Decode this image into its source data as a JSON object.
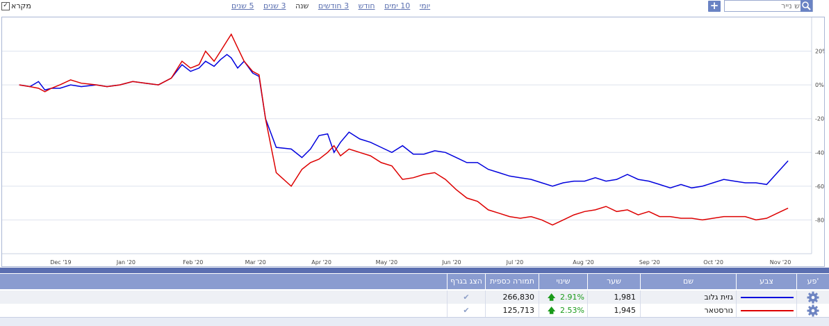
{
  "toolbar": {
    "legend_label": "מקרא",
    "legend_checked": true,
    "ranges": [
      "יומי",
      "10 ימים",
      "חודש",
      "3 חודשים",
      "שנה",
      "3 שנים",
      "5 שנים"
    ],
    "active_range": "שנה",
    "search_placeholder": "חפש נייר"
  },
  "chart_data": {
    "type": "line",
    "x_ticks": [
      "Dec '19",
      "Jan '20",
      "Feb '20",
      "Mar '20",
      "Apr '20",
      "May '20",
      "Jun '20",
      "Jul '20",
      "Aug '20",
      "Sep '20",
      "Oct '20",
      "Nov '20"
    ],
    "y_ticks": [
      "20%",
      "0%",
      "-20%",
      "-40%",
      "-60%",
      "-80%"
    ],
    "ylim": [
      -100,
      40
    ],
    "grid": true,
    "series": [
      {
        "name": "גזית גלוב",
        "color": "#0000dd",
        "x": [
          "2019-11-26",
          "2019-12-01",
          "2019-12-05",
          "2019-12-08",
          "2019-12-11",
          "2019-12-15",
          "2019-12-20",
          "2019-12-25",
          "2020-01-01",
          "2020-01-06",
          "2020-01-12",
          "2020-01-18",
          "2020-01-24",
          "2020-01-30",
          "2020-02-05",
          "2020-02-10",
          "2020-02-14",
          "2020-02-18",
          "2020-02-21",
          "2020-02-25",
          "2020-02-28",
          "2020-03-02",
          "2020-03-04",
          "2020-03-07",
          "2020-03-10",
          "2020-03-14",
          "2020-03-17",
          "2020-03-20",
          "2020-03-25",
          "2020-04-01",
          "2020-04-06",
          "2020-04-10",
          "2020-04-14",
          "2020-04-18",
          "2020-04-21",
          "2020-04-24",
          "2020-04-28",
          "2020-05-03",
          "2020-05-08",
          "2020-05-13",
          "2020-05-18",
          "2020-05-23",
          "2020-05-28",
          "2020-06-02",
          "2020-06-07",
          "2020-06-12",
          "2020-06-17",
          "2020-06-22",
          "2020-06-27",
          "2020-07-02",
          "2020-07-07",
          "2020-07-12",
          "2020-07-17",
          "2020-07-22",
          "2020-07-27",
          "2020-08-01",
          "2020-08-06",
          "2020-08-11",
          "2020-08-16",
          "2020-08-21",
          "2020-08-26",
          "2020-08-31",
          "2020-09-05",
          "2020-09-10",
          "2020-09-15",
          "2020-09-20",
          "2020-09-25",
          "2020-09-30",
          "2020-10-05",
          "2020-10-10",
          "2020-10-15",
          "2020-10-20",
          "2020-10-25",
          "2020-10-30",
          "2020-11-04",
          "2020-11-09",
          "2020-11-14",
          "2020-11-19"
        ],
        "y": [
          0,
          -1,
          2,
          -3,
          -2,
          -2,
          0,
          -1,
          0,
          -1,
          0,
          2,
          1,
          0,
          4,
          12,
          8,
          10,
          14,
          11,
          15,
          18,
          16,
          10,
          14,
          7,
          5,
          -20,
          -37,
          -38,
          -43,
          -38,
          -30,
          -29,
          -40,
          -34,
          -28,
          -32,
          -34,
          -37,
          -40,
          -36,
          -41,
          -41,
          -39,
          -40,
          -43,
          -46,
          -46,
          -50,
          -52,
          -54,
          -55,
          -56,
          -58,
          -60,
          -58,
          -57,
          -57,
          -55,
          -57,
          -56,
          -53,
          -56,
          -57,
          -59,
          -61,
          -59,
          -61,
          -60,
          -58,
          -56,
          -57,
          -58,
          -58,
          -59,
          -52,
          -45
        ]
      },
      {
        "name": "נורסטאר",
        "color": "#dd0000",
        "x": [
          "2019-11-26",
          "2019-12-01",
          "2019-12-05",
          "2019-12-08",
          "2019-12-11",
          "2019-12-15",
          "2019-12-20",
          "2019-12-25",
          "2020-01-01",
          "2020-01-06",
          "2020-01-12",
          "2020-01-18",
          "2020-01-24",
          "2020-01-30",
          "2020-02-05",
          "2020-02-10",
          "2020-02-14",
          "2020-02-18",
          "2020-02-21",
          "2020-02-25",
          "2020-02-28",
          "2020-03-02",
          "2020-03-04",
          "2020-03-07",
          "2020-03-10",
          "2020-03-14",
          "2020-03-17",
          "2020-03-20",
          "2020-03-25",
          "2020-04-01",
          "2020-04-06",
          "2020-04-10",
          "2020-04-14",
          "2020-04-18",
          "2020-04-21",
          "2020-04-24",
          "2020-04-28",
          "2020-05-03",
          "2020-05-08",
          "2020-05-13",
          "2020-05-18",
          "2020-05-23",
          "2020-05-28",
          "2020-06-02",
          "2020-06-07",
          "2020-06-12",
          "2020-06-17",
          "2020-06-22",
          "2020-06-27",
          "2020-07-02",
          "2020-07-07",
          "2020-07-12",
          "2020-07-17",
          "2020-07-22",
          "2020-07-27",
          "2020-08-01",
          "2020-08-06",
          "2020-08-11",
          "2020-08-16",
          "2020-08-21",
          "2020-08-26",
          "2020-08-31",
          "2020-09-05",
          "2020-09-10",
          "2020-09-15",
          "2020-09-20",
          "2020-09-25",
          "2020-09-30",
          "2020-10-05",
          "2020-10-10",
          "2020-10-15",
          "2020-10-20",
          "2020-10-25",
          "2020-10-30",
          "2020-11-04",
          "2020-11-09",
          "2020-11-14",
          "2020-11-19"
        ],
        "y": [
          0,
          -1,
          -2,
          -4,
          -2,
          0,
          3,
          1,
          0,
          -1,
          0,
          2,
          1,
          0,
          4,
          14,
          10,
          12,
          20,
          14,
          20,
          26,
          30,
          22,
          14,
          8,
          6,
          -20,
          -52,
          -60,
          -50,
          -46,
          -44,
          -40,
          -36,
          -42,
          -38,
          -40,
          -42,
          -46,
          -48,
          -56,
          -55,
          -53,
          -52,
          -56,
          -62,
          -67,
          -69,
          -74,
          -76,
          -78,
          -79,
          -78,
          -80,
          -83,
          -80,
          -77,
          -75,
          -74,
          -72,
          -75,
          -74,
          -77,
          -75,
          -78,
          -78,
          -79,
          -79,
          -80,
          -79,
          -78,
          -78,
          -78,
          -80,
          -79,
          -76,
          -73
        ]
      }
    ]
  },
  "table": {
    "headers": {
      "actions": "פע'",
      "color": "צבע",
      "name": "שם",
      "rate": "שער",
      "change": "שינוי",
      "volume": "תמורה כספית",
      "show": "הצג בגרף"
    },
    "rows": [
      {
        "name": "גזית גלוב",
        "rate": "1,981",
        "change": "2.91%",
        "volume": "266,830",
        "color": "#0000dd"
      },
      {
        "name": "נורסטאר",
        "rate": "1,945",
        "change": "2.53%",
        "volume": "125,713",
        "color": "#dd0000"
      }
    ]
  }
}
